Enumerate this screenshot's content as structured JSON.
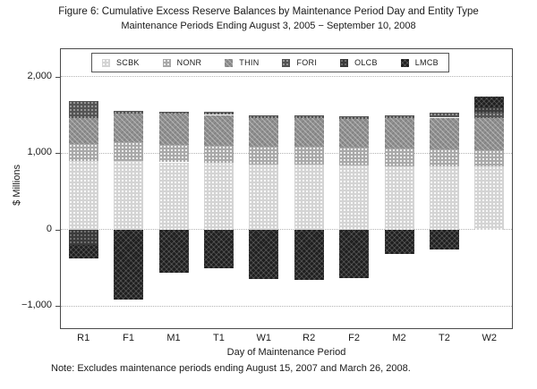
{
  "chart_data": {
    "type": "bar",
    "stacked": true,
    "title": "Figure 6: Cumulative Excess Reserve Balances by Maintenance Period Day and Entity Type",
    "subtitle": "Maintenance Periods Ending August 3, 2005 − September 10, 2008",
    "xlabel": "Day of Maintenance Period",
    "ylabel": "$ Millions",
    "note": "Note: Excludes maintenance periods ending August 15, 2007 and March 26, 2008.",
    "categories": [
      "R1",
      "F1",
      "M1",
      "T1",
      "W1",
      "R2",
      "F2",
      "M2",
      "T2",
      "W2"
    ],
    "ylim": [
      -1290,
      2360
    ],
    "yticks": [
      {
        "value": 2000,
        "label": "2,000"
      },
      {
        "value": 1000,
        "label": "1,000"
      },
      {
        "value": 0,
        "label": "0"
      },
      {
        "value": -1000,
        "label": "−1,000"
      }
    ],
    "grid": true,
    "legend_position": "top-inside",
    "units": "$ Millions",
    "series": [
      {
        "name": "SCBK",
        "pattern": "dots-light",
        "color": "#d4d4d4",
        "values": [
          900,
          900,
          880,
          870,
          855,
          855,
          835,
          825,
          830,
          825
        ]
      },
      {
        "name": "NONR",
        "pattern": "dots-med",
        "color": "#a9a9a9",
        "values": [
          215,
          240,
          225,
          230,
          230,
          230,
          235,
          235,
          215,
          215
        ]
      },
      {
        "name": "THIN",
        "pattern": "cross-med",
        "color": "#8f8f8f",
        "values": [
          345,
          380,
          410,
          400,
          375,
          370,
          380,
          395,
          420,
          420
        ]
      },
      {
        "name": "FORI",
        "pattern": "cross-dark",
        "color": "#545454",
        "values": [
          220,
          30,
          25,
          40,
          30,
          35,
          30,
          35,
          65,
          75
        ]
      },
      {
        "name": "OLCB",
        "pattern": "dots-dark",
        "color": "#3b3b3b",
        "values": [
          -205,
          0,
          0,
          0,
          0,
          0,
          0,
          0,
          0,
          70
        ]
      },
      {
        "name": "LMCB",
        "pattern": "cross-black",
        "color": "#1f1f1f",
        "values": [
          -175,
          -920,
          -570,
          -510,
          -650,
          -655,
          -630,
          -325,
          -255,
          140
        ]
      }
    ]
  }
}
